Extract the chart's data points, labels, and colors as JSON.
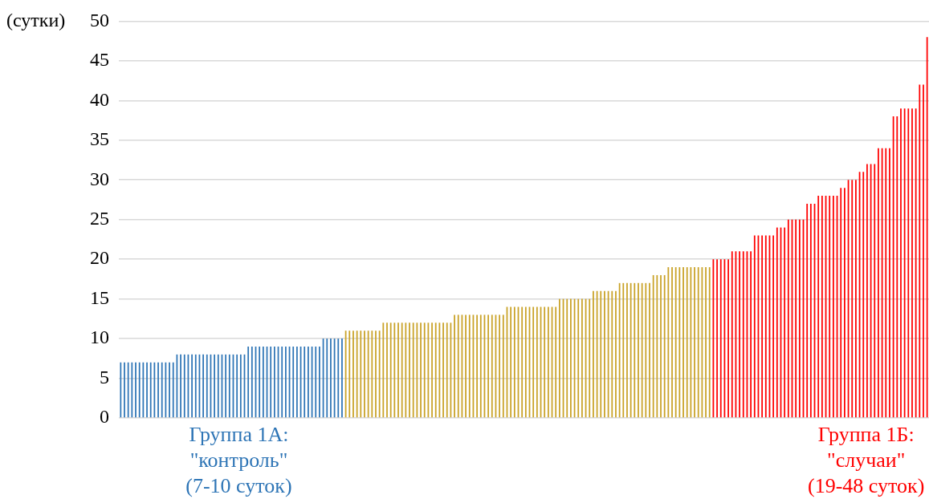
{
  "chart_data": {
    "type": "bar",
    "ylabel": "(сутки)",
    "categories": [
      null,
      null,
      null,
      null,
      null,
      null,
      null,
      null,
      null,
      null,
      null,
      null,
      null,
      null,
      null,
      null,
      null,
      null,
      null,
      null,
      null,
      null,
      null,
      null,
      null,
      null,
      null,
      null,
      null,
      null,
      null,
      null,
      null,
      null,
      null,
      null,
      null,
      null,
      null,
      null,
      null,
      null,
      null,
      null,
      null,
      null,
      null,
      null,
      null,
      null,
      null,
      null,
      null,
      null,
      null,
      null,
      null,
      null,
      null,
      null,
      null,
      null,
      null,
      null,
      null,
      null,
      null,
      null,
      null,
      null,
      null,
      null,
      null,
      null,
      null,
      null,
      null,
      null,
      null,
      null,
      null,
      null,
      null,
      null,
      null,
      null,
      null,
      null,
      null,
      null,
      null,
      null,
      null,
      null,
      null,
      null,
      null,
      null,
      null,
      null,
      null,
      null,
      null,
      null,
      null,
      null,
      null,
      null,
      null,
      null,
      null,
      null,
      null,
      null,
      null,
      null,
      null,
      null,
      null,
      null,
      null,
      null,
      null,
      null,
      null,
      null,
      null,
      null,
      null,
      null,
      null,
      null,
      null,
      null,
      null,
      null,
      null,
      null,
      null,
      null,
      null,
      null,
      null,
      null,
      null,
      null,
      null,
      null,
      null,
      null,
      null,
      null,
      null,
      null,
      null,
      null,
      null,
      null,
      null,
      null,
      null,
      null,
      null,
      null,
      null,
      null,
      null,
      null,
      null,
      null,
      null,
      null,
      null,
      null,
      null,
      null,
      null,
      null,
      null,
      null,
      null,
      null,
      null,
      null,
      null,
      null,
      null,
      null,
      null,
      null,
      null,
      null,
      null,
      null,
      null,
      null,
      null,
      null,
      null,
      null,
      null,
      null,
      null,
      null,
      null,
      null,
      null,
      null,
      null,
      null,
      null,
      null,
      null,
      null,
      null,
      null
    ],
    "values": [
      7,
      7,
      7,
      7,
      7,
      7,
      7,
      7,
      7,
      7,
      7,
      7,
      7,
      7,
      7,
      8,
      8,
      8,
      8,
      8,
      8,
      8,
      8,
      8,
      8,
      8,
      8,
      8,
      8,
      8,
      8,
      8,
      8,
      8,
      9,
      9,
      9,
      9,
      9,
      9,
      9,
      9,
      9,
      9,
      9,
      9,
      9,
      9,
      9,
      9,
      9,
      9,
      9,
      9,
      10,
      10,
      10,
      10,
      10,
      10,
      11,
      11,
      11,
      11,
      11,
      11,
      11,
      11,
      11,
      11,
      12,
      12,
      12,
      12,
      12,
      12,
      12,
      12,
      12,
      12,
      12,
      12,
      12,
      12,
      12,
      12,
      12,
      12,
      12,
      13,
      13,
      13,
      13,
      13,
      13,
      13,
      13,
      13,
      13,
      13,
      13,
      13,
      13,
      14,
      14,
      14,
      14,
      14,
      14,
      14,
      14,
      14,
      14,
      14,
      14,
      14,
      14,
      15,
      15,
      15,
      15,
      15,
      15,
      15,
      15,
      15,
      16,
      16,
      16,
      16,
      16,
      16,
      16,
      17,
      17,
      17,
      17,
      17,
      17,
      17,
      17,
      17,
      18,
      18,
      18,
      18,
      19,
      19,
      19,
      19,
      19,
      19,
      19,
      19,
      19,
      19,
      19,
      19,
      20,
      20,
      20,
      20,
      20,
      21,
      21,
      21,
      21,
      21,
      21,
      23,
      23,
      23,
      23,
      23,
      23,
      24,
      24,
      24,
      25,
      25,
      25,
      25,
      25,
      27,
      27,
      27,
      28,
      28,
      28,
      28,
      28,
      28,
      29,
      29,
      30,
      30,
      30,
      31,
      31,
      32,
      32,
      32,
      34,
      34,
      34,
      34,
      38,
      38,
      39,
      39,
      39,
      39,
      39,
      42,
      42,
      48
    ],
    "colors": [
      "#2e75b6",
      "#2e75b6",
      "#2e75b6",
      "#2e75b6",
      "#2e75b6",
      "#2e75b6",
      "#2e75b6",
      "#2e75b6",
      "#2e75b6",
      "#2e75b6",
      "#2e75b6",
      "#2e75b6",
      "#2e75b6",
      "#2e75b6",
      "#2e75b6",
      "#2e75b6",
      "#2e75b6",
      "#2e75b6",
      "#2e75b6",
      "#2e75b6",
      "#2e75b6",
      "#2e75b6",
      "#2e75b6",
      "#2e75b6",
      "#2e75b6",
      "#2e75b6",
      "#2e75b6",
      "#2e75b6",
      "#2e75b6",
      "#2e75b6",
      "#2e75b6",
      "#2e75b6",
      "#2e75b6",
      "#2e75b6",
      "#2e75b6",
      "#2e75b6",
      "#2e75b6",
      "#2e75b6",
      "#2e75b6",
      "#2e75b6",
      "#2e75b6",
      "#2e75b6",
      "#2e75b6",
      "#2e75b6",
      "#2e75b6",
      "#2e75b6",
      "#2e75b6",
      "#2e75b6",
      "#2e75b6",
      "#2e75b6",
      "#2e75b6",
      "#2e75b6",
      "#2e75b6",
      "#2e75b6",
      "#2e75b6",
      "#2e75b6",
      "#2e75b6",
      "#2e75b6",
      "#2e75b6",
      "#2e75b6",
      "#c9a227",
      "#c9a227",
      "#c9a227",
      "#c9a227",
      "#c9a227",
      "#c9a227",
      "#c9a227",
      "#c9a227",
      "#c9a227",
      "#c9a227",
      "#c9a227",
      "#c9a227",
      "#c9a227",
      "#c9a227",
      "#c9a227",
      "#c9a227",
      "#c9a227",
      "#c9a227",
      "#c9a227",
      "#c9a227",
      "#c9a227",
      "#c9a227",
      "#c9a227",
      "#c9a227",
      "#c9a227",
      "#c9a227",
      "#c9a227",
      "#c9a227",
      "#c9a227",
      "#c9a227",
      "#c9a227",
      "#c9a227",
      "#c9a227",
      "#c9a227",
      "#c9a227",
      "#c9a227",
      "#c9a227",
      "#c9a227",
      "#c9a227",
      "#c9a227",
      "#c9a227",
      "#c9a227",
      "#c9a227",
      "#c9a227",
      "#c9a227",
      "#c9a227",
      "#c9a227",
      "#c9a227",
      "#c9a227",
      "#c9a227",
      "#c9a227",
      "#c9a227",
      "#c9a227",
      "#c9a227",
      "#c9a227",
      "#c9a227",
      "#c9a227",
      "#c9a227",
      "#c9a227",
      "#c9a227",
      "#c9a227",
      "#c9a227",
      "#c9a227",
      "#c9a227",
      "#c9a227",
      "#c9a227",
      "#c9a227",
      "#c9a227",
      "#c9a227",
      "#c9a227",
      "#c9a227",
      "#c9a227",
      "#c9a227",
      "#c9a227",
      "#c9a227",
      "#c9a227",
      "#c9a227",
      "#c9a227",
      "#c9a227",
      "#c9a227",
      "#c9a227",
      "#c9a227",
      "#c9a227",
      "#c9a227",
      "#c9a227",
      "#c9a227",
      "#c9a227",
      "#c9a227",
      "#c9a227",
      "#c9a227",
      "#c9a227",
      "#c9a227",
      "#c9a227",
      "#c9a227",
      "#c9a227",
      "#c9a227",
      "#c9a227",
      "#c9a227",
      "#ff0000",
      "#ff0000",
      "#ff0000",
      "#ff0000",
      "#ff0000",
      "#ff0000",
      "#ff0000",
      "#ff0000",
      "#ff0000",
      "#ff0000",
      "#ff0000",
      "#ff0000",
      "#ff0000",
      "#ff0000",
      "#ff0000",
      "#ff0000",
      "#ff0000",
      "#ff0000",
      "#ff0000",
      "#ff0000",
      "#ff0000",
      "#ff0000",
      "#ff0000",
      "#ff0000",
      "#ff0000",
      "#ff0000",
      "#ff0000",
      "#ff0000",
      "#ff0000",
      "#ff0000",
      "#ff0000",
      "#ff0000",
      "#ff0000",
      "#ff0000",
      "#ff0000",
      "#ff0000",
      "#ff0000",
      "#ff0000",
      "#ff0000",
      "#ff0000",
      "#ff0000",
      "#ff0000",
      "#ff0000",
      "#ff0000",
      "#ff0000",
      "#ff0000",
      "#ff0000",
      "#ff0000",
      "#ff0000",
      "#ff0000",
      "#ff0000",
      "#ff0000",
      "#ff0000",
      "#ff0000",
      "#ff0000",
      "#ff0000",
      "#ff0000",
      "#ff0000"
    ],
    "ylim": [
      0,
      50
    ],
    "yticks": [
      0,
      5,
      10,
      15,
      20,
      25,
      30,
      35,
      40,
      45,
      50
    ],
    "grid": "y",
    "annotations": [
      "Группа 1А:\n\"контроль\"\n(7-10 суток)",
      "Группа 1Б:\n\"случаи\"\n(19-48 суток)"
    ]
  }
}
